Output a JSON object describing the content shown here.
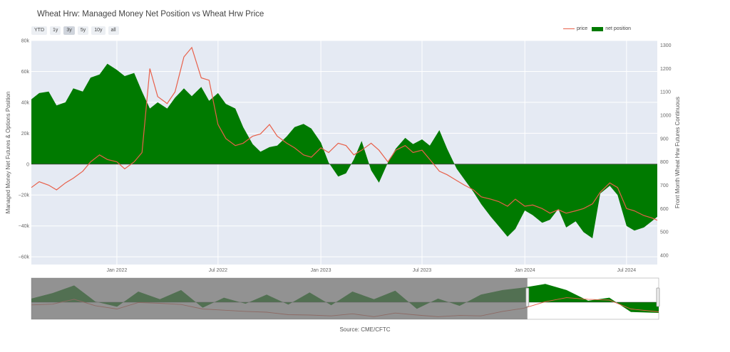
{
  "title": "Wheat Hrw: Managed Money Net Position vs Wheat Hrw Price",
  "range_buttons": [
    "YTD",
    "1y",
    "3y",
    "5y",
    "10y",
    "all"
  ],
  "active_range": "3y",
  "source": "Source: CME/CFTC",
  "colors": {
    "price": "#e8604a",
    "net_position": "#007a00",
    "plot_bg": "#e5eaf3",
    "grid": "#ffffff"
  },
  "chart_data": {
    "type": "area",
    "title": "Wheat Hrw: Managed Money Net Position vs Wheat Hrw Price",
    "xlabel": "",
    "y_left_label": "Managed Money Net Futures & Options Position",
    "y_right_label": "Front Month Wheat Hrw Futures Continuous",
    "x_range": [
      "2021-08-01",
      "2024-08-25"
    ],
    "y_left_range": [
      -65000,
      80000
    ],
    "y_right_range": [
      360,
      1320
    ],
    "x_ticks": [
      {
        "date": "2022-01-01",
        "label": "Jan 2022"
      },
      {
        "date": "2022-07-01",
        "label": "Jul 2022"
      },
      {
        "date": "2023-01-01",
        "label": "Jan 2023"
      },
      {
        "date": "2023-07-01",
        "label": "Jul 2023"
      },
      {
        "date": "2024-01-01",
        "label": "Jan 2024"
      },
      {
        "date": "2024-07-01",
        "label": "Jul 2024"
      }
    ],
    "y_left_ticks": [
      {
        "value": 80000,
        "label": "80k"
      },
      {
        "value": 60000,
        "label": "60k"
      },
      {
        "value": 40000,
        "label": "40k"
      },
      {
        "value": 20000,
        "label": "20k"
      },
      {
        "value": 0,
        "label": "0"
      },
      {
        "value": -20000,
        "label": "−20k"
      },
      {
        "value": -40000,
        "label": "−40k"
      },
      {
        "value": -60000,
        "label": "−60k"
      }
    ],
    "y_right_ticks": [
      {
        "value": 1300,
        "label": "1300"
      },
      {
        "value": 1200,
        "label": "1200"
      },
      {
        "value": 1100,
        "label": "1100"
      },
      {
        "value": 1000,
        "label": "1000"
      },
      {
        "value": 900,
        "label": "900"
      },
      {
        "value": 800,
        "label": "800"
      },
      {
        "value": 700,
        "label": "700"
      },
      {
        "value": 600,
        "label": "600"
      },
      {
        "value": 500,
        "label": "500"
      },
      {
        "value": 400,
        "label": "400"
      }
    ],
    "grid": true,
    "legend_placement": "top-right",
    "series": [
      {
        "name": "net position",
        "axis": "left",
        "style": "filled-area",
        "points": [
          [
            "2021-08-01",
            42000
          ],
          [
            "2021-08-15",
            46000
          ],
          [
            "2021-09-01",
            47000
          ],
          [
            "2021-09-15",
            38000
          ],
          [
            "2021-10-01",
            40000
          ],
          [
            "2021-10-15",
            49000
          ],
          [
            "2021-11-01",
            47000
          ],
          [
            "2021-11-15",
            56000
          ],
          [
            "2021-12-01",
            58000
          ],
          [
            "2021-12-15",
            65000
          ],
          [
            "2022-01-01",
            61000
          ],
          [
            "2022-01-15",
            57000
          ],
          [
            "2022-02-01",
            59000
          ],
          [
            "2022-02-15",
            47000
          ],
          [
            "2022-03-01",
            36000
          ],
          [
            "2022-03-15",
            40000
          ],
          [
            "2022-04-01",
            36000
          ],
          [
            "2022-04-15",
            43000
          ],
          [
            "2022-05-01",
            49000
          ],
          [
            "2022-05-15",
            44000
          ],
          [
            "2022-06-01",
            50000
          ],
          [
            "2022-06-15",
            41000
          ],
          [
            "2022-07-01",
            46000
          ],
          [
            "2022-07-15",
            39000
          ],
          [
            "2022-08-01",
            36000
          ],
          [
            "2022-08-15",
            24000
          ],
          [
            "2022-09-01",
            13000
          ],
          [
            "2022-09-15",
            8000
          ],
          [
            "2022-10-01",
            11000
          ],
          [
            "2022-10-15",
            12000
          ],
          [
            "2022-11-01",
            18000
          ],
          [
            "2022-11-15",
            24000
          ],
          [
            "2022-12-01",
            26000
          ],
          [
            "2022-12-15",
            23000
          ],
          [
            "2023-01-01",
            14000
          ],
          [
            "2023-01-15",
            1000
          ],
          [
            "2023-02-01",
            -8000
          ],
          [
            "2023-02-15",
            -6000
          ],
          [
            "2023-03-01",
            3000
          ],
          [
            "2023-03-15",
            15000
          ],
          [
            "2023-04-01",
            -4000
          ],
          [
            "2023-04-15",
            -12000
          ],
          [
            "2023-05-01",
            1000
          ],
          [
            "2023-05-15",
            10000
          ],
          [
            "2023-06-01",
            17000
          ],
          [
            "2023-06-15",
            13000
          ],
          [
            "2023-07-01",
            16000
          ],
          [
            "2023-07-15",
            12000
          ],
          [
            "2023-08-01",
            22000
          ],
          [
            "2023-08-15",
            10000
          ],
          [
            "2023-09-01",
            -3000
          ],
          [
            "2023-09-15",
            -10000
          ],
          [
            "2023-10-01",
            -18000
          ],
          [
            "2023-10-15",
            -26000
          ],
          [
            "2023-11-01",
            -34000
          ],
          [
            "2023-11-15",
            -40000
          ],
          [
            "2023-12-01",
            -47000
          ],
          [
            "2023-12-15",
            -42000
          ],
          [
            "2024-01-01",
            -30000
          ],
          [
            "2024-01-15",
            -33000
          ],
          [
            "2024-02-01",
            -38000
          ],
          [
            "2024-02-15",
            -36000
          ],
          [
            "2024-03-01",
            -29000
          ],
          [
            "2024-03-15",
            -41000
          ],
          [
            "2024-04-01",
            -37000
          ],
          [
            "2024-04-15",
            -44000
          ],
          [
            "2024-05-01",
            -48000
          ],
          [
            "2024-05-15",
            -19000
          ],
          [
            "2024-06-01",
            -14000
          ],
          [
            "2024-06-15",
            -20000
          ],
          [
            "2024-07-01",
            -40000
          ],
          [
            "2024-07-15",
            -43000
          ],
          [
            "2024-08-01",
            -41000
          ],
          [
            "2024-08-15",
            -37000
          ],
          [
            "2024-08-25",
            -34000
          ]
        ]
      },
      {
        "name": "price",
        "axis": "right",
        "style": "line",
        "points": [
          [
            "2021-08-01",
            690
          ],
          [
            "2021-08-15",
            715
          ],
          [
            "2021-09-01",
            700
          ],
          [
            "2021-09-15",
            680
          ],
          [
            "2021-10-01",
            710
          ],
          [
            "2021-10-15",
            730
          ],
          [
            "2021-11-01",
            760
          ],
          [
            "2021-11-15",
            800
          ],
          [
            "2021-12-01",
            830
          ],
          [
            "2021-12-15",
            810
          ],
          [
            "2022-01-01",
            800
          ],
          [
            "2022-01-15",
            770
          ],
          [
            "2022-02-01",
            800
          ],
          [
            "2022-02-15",
            840
          ],
          [
            "2022-03-01",
            1200
          ],
          [
            "2022-03-15",
            1080
          ],
          [
            "2022-04-01",
            1050
          ],
          [
            "2022-04-15",
            1100
          ],
          [
            "2022-05-01",
            1250
          ],
          [
            "2022-05-15",
            1290
          ],
          [
            "2022-06-01",
            1160
          ],
          [
            "2022-06-15",
            1150
          ],
          [
            "2022-07-01",
            960
          ],
          [
            "2022-07-15",
            900
          ],
          [
            "2022-08-01",
            870
          ],
          [
            "2022-08-15",
            880
          ],
          [
            "2022-09-01",
            910
          ],
          [
            "2022-09-15",
            920
          ],
          [
            "2022-10-01",
            960
          ],
          [
            "2022-10-15",
            910
          ],
          [
            "2022-11-01",
            880
          ],
          [
            "2022-11-15",
            860
          ],
          [
            "2022-12-01",
            830
          ],
          [
            "2022-12-15",
            820
          ],
          [
            "2023-01-01",
            860
          ],
          [
            "2023-01-15",
            840
          ],
          [
            "2023-02-01",
            880
          ],
          [
            "2023-02-15",
            870
          ],
          [
            "2023-03-01",
            830
          ],
          [
            "2023-03-15",
            850
          ],
          [
            "2023-04-01",
            880
          ],
          [
            "2023-04-15",
            850
          ],
          [
            "2023-05-01",
            800
          ],
          [
            "2023-05-15",
            850
          ],
          [
            "2023-06-01",
            870
          ],
          [
            "2023-06-15",
            840
          ],
          [
            "2023-07-01",
            850
          ],
          [
            "2023-07-15",
            810
          ],
          [
            "2023-08-01",
            760
          ],
          [
            "2023-08-15",
            745
          ],
          [
            "2023-09-01",
            720
          ],
          [
            "2023-09-15",
            700
          ],
          [
            "2023-10-01",
            680
          ],
          [
            "2023-10-15",
            650
          ],
          [
            "2023-11-01",
            640
          ],
          [
            "2023-11-15",
            630
          ],
          [
            "2023-12-01",
            610
          ],
          [
            "2023-12-15",
            640
          ],
          [
            "2024-01-01",
            610
          ],
          [
            "2024-01-15",
            615
          ],
          [
            "2024-02-01",
            600
          ],
          [
            "2024-02-15",
            580
          ],
          [
            "2024-03-01",
            595
          ],
          [
            "2024-03-15",
            580
          ],
          [
            "2024-04-01",
            590
          ],
          [
            "2024-04-15",
            600
          ],
          [
            "2024-05-01",
            620
          ],
          [
            "2024-05-15",
            670
          ],
          [
            "2024-06-01",
            710
          ],
          [
            "2024-06-15",
            690
          ],
          [
            "2024-07-01",
            600
          ],
          [
            "2024-07-15",
            590
          ],
          [
            "2024-08-01",
            570
          ],
          [
            "2024-08-15",
            560
          ],
          [
            "2024-08-25",
            550
          ]
        ]
      }
    ],
    "rangeslider": {
      "range": [
        "2021-08-01",
        "2024-08-25"
      ],
      "window": [
        "2021-08-01",
        "2024-08-25"
      ],
      "series_points": [
        [
          "2010-01-01",
          12000,
          720
        ],
        [
          "2010-07-01",
          30000,
          740
        ],
        [
          "2011-01-01",
          55000,
          860
        ],
        [
          "2011-07-01",
          2000,
          700
        ],
        [
          "2012-01-01",
          -15000,
          620
        ],
        [
          "2012-07-01",
          35000,
          780
        ],
        [
          "2013-01-01",
          10000,
          760
        ],
        [
          "2013-07-01",
          40000,
          730
        ],
        [
          "2014-01-01",
          -18000,
          620
        ],
        [
          "2014-07-01",
          15000,
          590
        ],
        [
          "2015-01-01",
          -5000,
          560
        ],
        [
          "2015-07-01",
          25000,
          540
        ],
        [
          "2016-01-01",
          -8000,
          480
        ],
        [
          "2016-07-01",
          32000,
          470
        ],
        [
          "2017-01-01",
          -10000,
          450
        ],
        [
          "2017-07-01",
          35000,
          500
        ],
        [
          "2018-01-01",
          10000,
          430
        ],
        [
          "2018-07-01",
          38000,
          520
        ],
        [
          "2019-01-01",
          -22000,
          470
        ],
        [
          "2019-07-01",
          12000,
          430
        ],
        [
          "2020-01-01",
          -12000,
          460
        ],
        [
          "2020-07-01",
          25000,
          450
        ],
        [
          "2021-01-01",
          40000,
          560
        ],
        [
          "2021-07-01",
          48000,
          640
        ],
        [
          "2022-01-01",
          60000,
          800
        ],
        [
          "2022-07-01",
          40000,
          900
        ],
        [
          "2023-01-01",
          5000,
          860
        ],
        [
          "2023-07-01",
          15000,
          840
        ],
        [
          "2024-01-01",
          -32000,
          620
        ],
        [
          "2024-08-25",
          -35000,
          550
        ]
      ]
    }
  }
}
